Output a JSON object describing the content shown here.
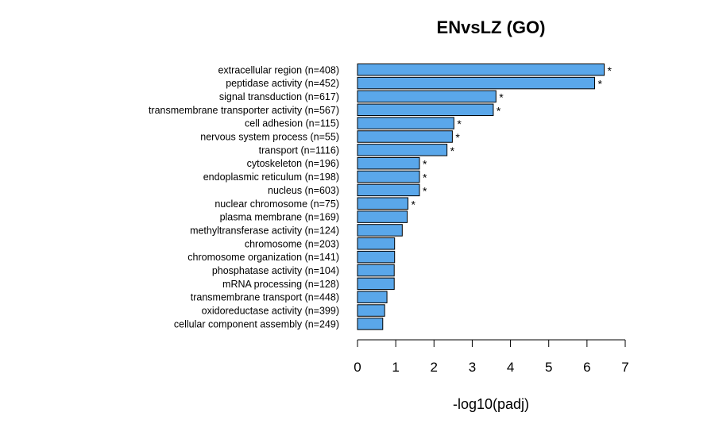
{
  "chart_data": {
    "type": "bar",
    "orientation": "horizontal",
    "title": "ENvsLZ (GO)",
    "xlabel": "-log10(padj)",
    "ylabel": "",
    "xlim": [
      0,
      7
    ],
    "x_ticks": [
      "0",
      "1",
      "2",
      "3",
      "4",
      "5",
      "6",
      "7"
    ],
    "bar_color": "#5aa7ea",
    "significance_marker": "*",
    "categories": [
      "extracellular region (n=408)",
      "peptidase activity (n=452)",
      "signal transduction (n=617)",
      "transmembrane transporter activity (n=567)",
      "cell adhesion (n=115)",
      "nervous system process (n=55)",
      "transport (n=1116)",
      "cytoskeleton (n=196)",
      "endoplasmic reticulum (n=198)",
      "nucleus (n=603)",
      "nuclear chromosome (n=75)",
      "plasma membrane (n=169)",
      "methyltransferase activity (n=124)",
      "chromosome (n=203)",
      "chromosome organization (n=141)",
      "phosphatase activity (n=104)",
      "mRNA processing (n=128)",
      "transmembrane transport (n=448)",
      "oxidoreductase activity (n=399)",
      "cellular component assembly (n=249)"
    ],
    "values": [
      6.45,
      6.2,
      3.62,
      3.55,
      2.52,
      2.48,
      2.34,
      1.62,
      1.62,
      1.62,
      1.32,
      1.3,
      1.17,
      0.97,
      0.97,
      0.96,
      0.96,
      0.77,
      0.71,
      0.66
    ],
    "significant": [
      true,
      true,
      true,
      true,
      true,
      true,
      true,
      true,
      true,
      true,
      true,
      false,
      false,
      false,
      false,
      false,
      false,
      false,
      false,
      false
    ]
  }
}
